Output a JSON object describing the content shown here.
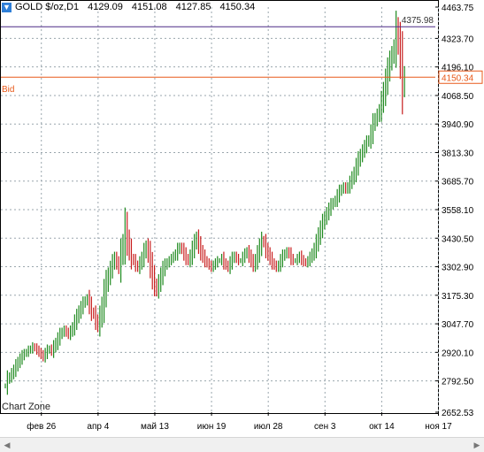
{
  "header": {
    "symbol": "GOLD $/oz,D1",
    "open": "4129.09",
    "high": "4151.08",
    "low": "4127.85",
    "close": "4150.34",
    "icon": "down-arrow-icon"
  },
  "lines": {
    "high_level_value": "4375.98",
    "bid_label": "Bid",
    "bid_value": "4150.34",
    "high_color": "#4b2a86",
    "bid_color": "#e8591a"
  },
  "watermark": "Chart Zone",
  "colors": {
    "up": "#1f8a1f",
    "down": "#c81e1e",
    "grid": "#9aa6ad"
  },
  "chart_data": {
    "type": "bar",
    "title": "",
    "xlabel": "",
    "ylabel": "",
    "grid": true,
    "yticks": [
      "4463.75",
      "4323.70",
      "4196.10",
      "4068.50",
      "3940.90",
      "3813.30",
      "3685.70",
      "3558.10",
      "3430.50",
      "3302.90",
      "3175.30",
      "3047.70",
      "2920.10",
      "2792.50",
      "2652.53"
    ],
    "xticks": [
      "фев 26",
      "апр 4",
      "май 13",
      "июн 19",
      "июл 28",
      "сен 3",
      "окт 14",
      "ноя 17"
    ],
    "xtick_index": [
      18,
      45,
      72,
      99,
      126,
      153,
      180,
      207
    ],
    "ylim": [
      2652.53,
      4463.75
    ],
    "series": [
      {
        "values": [
          2770,
          2800,
          2810,
          2825,
          2840,
          2860,
          2875,
          2890,
          2905,
          2915,
          2920,
          2930,
          2935,
          2945,
          2940,
          2930,
          2920,
          2910,
          2900,
          2915,
          2930,
          2935,
          2925,
          2945,
          2960,
          2980,
          3000,
          3010,
          3020,
          3010,
          3000,
          3015,
          3030,
          3055,
          3080,
          3100,
          3120,
          3140,
          3150,
          3160,
          3130,
          3100,
          3090,
          3060,
          3040,
          3080,
          3120,
          3180,
          3230,
          3260,
          3290,
          3320,
          3340,
          3320,
          3300,
          3360,
          3400,
          3480,
          3420,
          3380,
          3340,
          3330,
          3310,
          3300,
          3320,
          3340,
          3370,
          3390,
          3360,
          3310,
          3260,
          3220,
          3200,
          3230,
          3260,
          3290,
          3310,
          3320,
          3330,
          3340,
          3350,
          3360,
          3380,
          3390,
          3380,
          3360,
          3340,
          3330,
          3350,
          3380,
          3410,
          3430,
          3400,
          3370,
          3350,
          3330,
          3320,
          3310,
          3300,
          3310,
          3320,
          3330,
          3330,
          3340,
          3320,
          3310,
          3300,
          3320,
          3340,
          3350,
          3340,
          3330,
          3330,
          3345,
          3360,
          3370,
          3350,
          3330,
          3310,
          3330,
          3360,
          3390,
          3420,
          3410,
          3380,
          3360,
          3340,
          3320,
          3310,
          3300,
          3310,
          3330,
          3350,
          3360,
          3370,
          3360,
          3340,
          3330,
          3330,
          3340,
          3350,
          3335,
          3325,
          3320,
          3330,
          3345,
          3360,
          3380,
          3410,
          3440,
          3470,
          3500,
          3520,
          3540,
          3560,
          3580,
          3590,
          3600,
          3620,
          3640,
          3650,
          3660,
          3650,
          3660,
          3680,
          3700,
          3720,
          3750,
          3780,
          3800,
          3820,
          3840,
          3860,
          3870,
          3900,
          3940,
          3960,
          3980,
          4000,
          4040,
          4080,
          4130,
          4180,
          4220,
          4250,
          4280,
          4360,
          4310,
          4230,
          4110,
          4150.34
        ]
      }
    ]
  }
}
